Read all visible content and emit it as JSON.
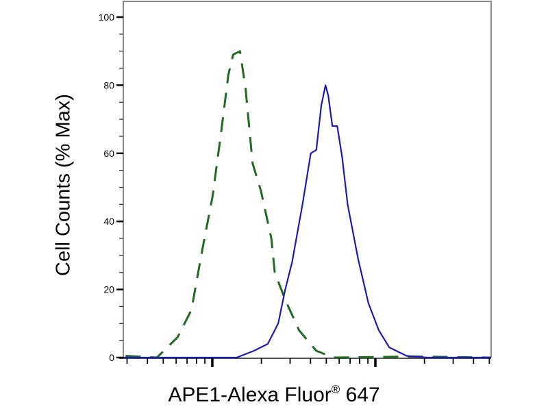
{
  "chart_data": {
    "type": "line",
    "title": "",
    "xlabel": "APE1-Alexa Fluor",
    "xlabel_mark": "®",
    "xlabel_suffix": "647",
    "ylabel": "Cell Counts (% Max)",
    "xscale": "log",
    "xlim": [
      1.454,
      3.71
    ],
    "x_major_ticks": [
      2,
      3
    ],
    "ylim": [
      0,
      100
    ],
    "yticks": [
      0,
      20,
      40,
      60,
      80,
      100
    ],
    "ytick_labels": [
      "0",
      "20",
      "40",
      "60",
      "80",
      "100"
    ],
    "y_minor_step": 5,
    "grid": false,
    "legend": "none",
    "series": [
      {
        "style": "dashed",
        "color": "#1f6b1f",
        "x": [
          1.468,
          1.66,
          1.787,
          1.872,
          1.936,
          2.0,
          2.051,
          2.098,
          2.128,
          2.17,
          2.204,
          2.247,
          2.298,
          2.362,
          2.383,
          2.447,
          2.532,
          2.638,
          2.745,
          3.234,
          3.71
        ],
        "y": [
          0.5,
          0,
          6,
          14,
          31,
          47,
          65,
          83,
          89,
          90,
          79,
          57,
          49,
          35,
          25,
          17,
          8,
          2,
          0,
          0.3,
          0
        ]
      },
      {
        "style": "solid",
        "color": "#1a1ab4",
        "x": [
          1.454,
          1.872,
          2.149,
          2.255,
          2.34,
          2.404,
          2.447,
          2.489,
          2.553,
          2.604,
          2.638,
          2.668,
          2.694,
          2.711,
          2.736,
          2.766,
          2.796,
          2.83,
          2.894,
          2.957,
          3.021,
          3.085,
          3.191,
          3.319,
          3.71
        ],
        "y": [
          0,
          0,
          0,
          2,
          4,
          10,
          20,
          28,
          45,
          60,
          61,
          74,
          80,
          77,
          68,
          68,
          59,
          45,
          29,
          16,
          8,
          3,
          0.5,
          0,
          0
        ]
      }
    ]
  }
}
